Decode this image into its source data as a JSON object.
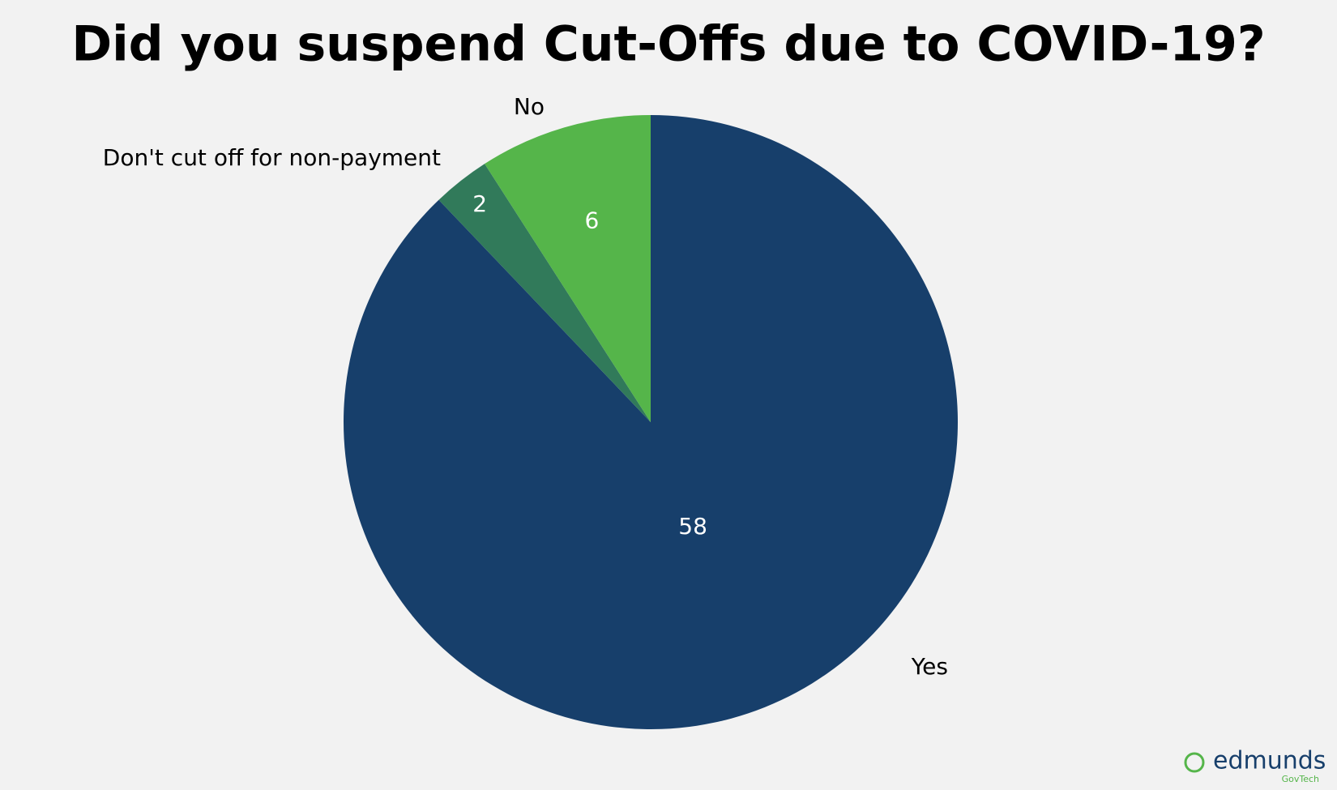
{
  "chart_data": {
    "type": "pie",
    "title": "Did you suspend Cut-Offs due to COVID-19?",
    "categories": [
      "Yes",
      "Don't cut off for non-payment",
      "No"
    ],
    "values": [
      58,
      2,
      6
    ],
    "colors": [
      "#173f6b",
      "#317a5a",
      "#55b54a"
    ]
  },
  "logo": {
    "name": "edmunds",
    "tagline": "GovTech"
  }
}
